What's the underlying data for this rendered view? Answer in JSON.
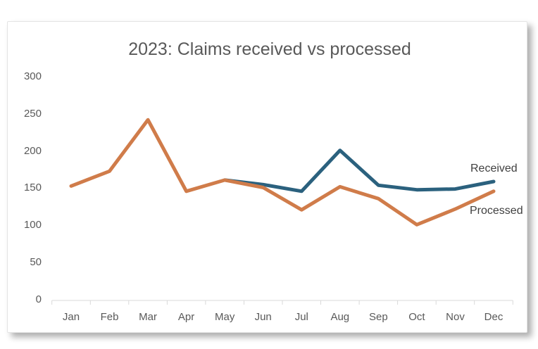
{
  "chart_data": {
    "type": "line",
    "title": "2023: Claims received vs processed",
    "categories": [
      "Jan",
      "Feb",
      "Mar",
      "Apr",
      "May",
      "Jun",
      "Jul",
      "Aug",
      "Sep",
      "Oct",
      "Nov",
      "Dec"
    ],
    "series": [
      {
        "name": "Received",
        "color": "#2b617e",
        "values": [
          null,
          null,
          null,
          null,
          160,
          154,
          145,
          200,
          153,
          147,
          148,
          158
        ]
      },
      {
        "name": "Processed",
        "color": "#d07c4a",
        "values": [
          152,
          172,
          241,
          145,
          160,
          150,
          120,
          151,
          135,
          100,
          121,
          145
        ]
      }
    ],
    "y_ticks": [
      0,
      50,
      100,
      150,
      200,
      250,
      300
    ],
    "ylim": [
      0,
      300
    ],
    "xlabel": "",
    "ylabel": "",
    "grid": "off",
    "legend": "inline-labels-right-of-lines",
    "colors": {
      "title": "#595959",
      "axis_labels": "#595959",
      "axis_line": "#d9d9d9",
      "series_labels": "#404040",
      "card_background": "#ffffff",
      "card_border": "#e4e4e4"
    }
  }
}
